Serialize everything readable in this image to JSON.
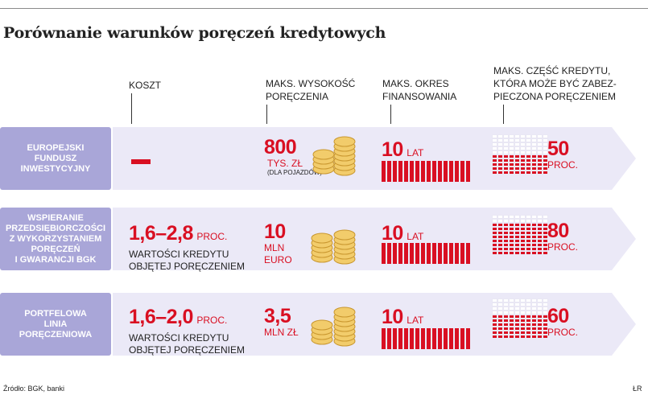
{
  "title": "Porównanie warunków poręczeń kredytowych",
  "headers": {
    "koszt": "KOSZT",
    "wysokosc_1": "MAKS. WYSOKOŚĆ",
    "wysokosc_2": "PORĘCZENIA",
    "okres_1": "MAKS. OKRES",
    "okres_2": "FINANSOWANIA",
    "czesc_1": "MAKS. CZĘŚĆ KREDYTU,",
    "czesc_2": "KTÓRA MOŻE BYĆ ZABEZ-",
    "czesc_3": "PIECZONA PORĘCZENIEM"
  },
  "rows": [
    {
      "name_1": "EUROPEJSKI",
      "name_2": "FUNDUSZ",
      "name_3": "INWESTYCYJNY",
      "cost": "–",
      "amount": "800",
      "amount_unit": "TYS. ZŁ",
      "amount_note": "(DLA POJAZDÓW)",
      "years": "10",
      "years_unit": "LAT",
      "share": "50",
      "share_unit": "PROC.",
      "share_value": 50
    },
    {
      "name_1": "WSPIERANIE",
      "name_2": "PRZEDSIĘBIORCZOŚCI",
      "name_3": "Z WYKORZYSTANIEM",
      "name_4": "PORĘCZEŃ",
      "name_5": "I GWARANCJI BGK",
      "cost": "1,6–2,8",
      "cost_unit": "PROC.",
      "cost_sub_1": "WARTOŚCI KREDYTU",
      "cost_sub_2": "OBJĘTEJ PORĘCZENIEM",
      "amount": "10",
      "amount_unit_1": "MLN",
      "amount_unit_2": "EURO",
      "years": "10",
      "years_unit": "LAT",
      "share": "80",
      "share_unit": "PROC.",
      "share_value": 80
    },
    {
      "name_1": "PORTFELOWA",
      "name_2": "LINIA",
      "name_3": "PORĘCZENIOWA",
      "cost": "1,6–2,0",
      "cost_unit": "PROC.",
      "cost_sub_1": "WARTOŚCI KREDYTU",
      "cost_sub_2": "OBJĘTEJ PORĘCZENIEM",
      "amount": "3,5",
      "amount_unit": "MLN ZŁ",
      "years": "10",
      "years_unit": "LAT",
      "share": "60",
      "share_unit": "PROC.",
      "share_value": 60
    }
  ],
  "footer": {
    "source": "Źródło: BGK, banki",
    "initials": "ŁR"
  },
  "colors": {
    "accent_red": "#d90f22",
    "label_box": "#a9a6d8",
    "band": "#ebe9f7"
  }
}
